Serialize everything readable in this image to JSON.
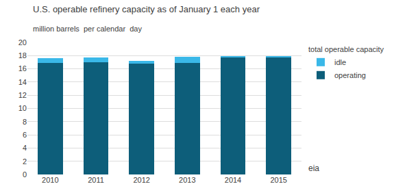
{
  "chart_data": {
    "type": "bar",
    "title": "U.S. operable refinery capacity as of January 1 each year",
    "subtitle": "million barrels  per calendar  day",
    "categories": [
      "2010",
      "2011",
      "2012",
      "2013",
      "2014",
      "2015"
    ],
    "series": [
      {
        "name": "operating",
        "color": "#0d5e7a",
        "values": [
          16.9,
          17.0,
          16.8,
          16.9,
          17.8,
          17.8
        ]
      },
      {
        "name": "idle",
        "color": "#3ab8e8",
        "values": [
          0.7,
          0.75,
          0.4,
          0.9,
          0.1,
          0.1
        ]
      }
    ],
    "stacked": true,
    "ylim": [
      0,
      20
    ],
    "yticks": [
      0,
      2,
      4,
      6,
      8,
      10,
      12,
      14,
      16,
      18,
      20
    ],
    "grid": true,
    "legend": "right",
    "legend_title": "total operable capacity",
    "annotations": [
      "eia"
    ]
  }
}
